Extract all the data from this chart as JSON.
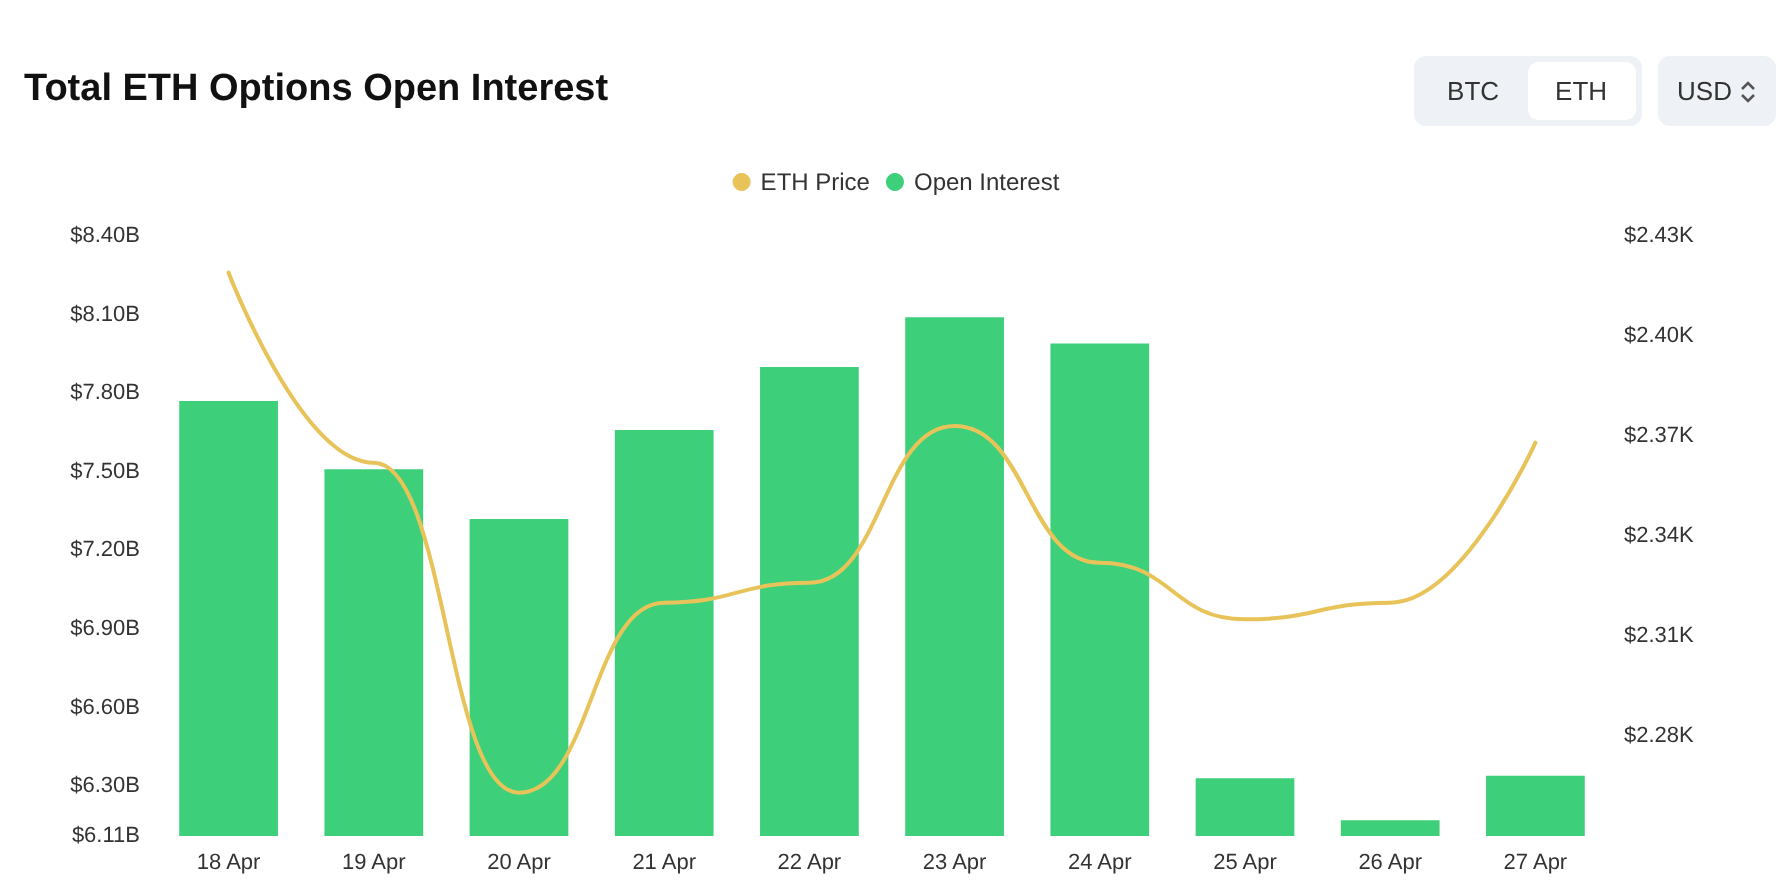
{
  "chart_data": {
    "type": "bar",
    "title": "Total ETH Options Open Interest",
    "annotations": [
      "BTC",
      "ETH",
      "USD"
    ],
    "categories": [
      "18 Apr",
      "19 Apr",
      "20 Apr",
      "21 Apr",
      "22 Apr",
      "23 Apr",
      "24 Apr",
      "25 Apr",
      "26 Apr",
      "27 Apr"
    ],
    "series": [
      {
        "name": "ETH Price",
        "type": "line",
        "axis": "y2",
        "color": "#e8c35a",
        "values": [
          2419,
          2362,
          2263,
          2320,
          2326,
          2373,
          2332,
          2315,
          2320,
          2368
        ]
      },
      {
        "name": "Open Interest",
        "color": "#3ecf7a",
        "values": [
          7.77,
          7.51,
          7.32,
          7.66,
          7.9,
          8.09,
          7.99,
          6.33,
          6.17,
          6.34
        ]
      }
    ],
    "ylim": [
      6.11,
      8.4
    ],
    "yticks": [
      {
        "value": 6.11,
        "label": "$6.11B"
      },
      {
        "value": 6.3,
        "label": "$6.30B"
      },
      {
        "value": 6.6,
        "label": "$6.60B"
      },
      {
        "value": 6.9,
        "label": "$6.90B"
      },
      {
        "value": 7.2,
        "label": "$7.20B"
      },
      {
        "value": 7.5,
        "label": "$7.50B"
      },
      {
        "value": 7.8,
        "label": "$7.80B"
      },
      {
        "value": 8.1,
        "label": "$8.10B"
      },
      {
        "value": 8.4,
        "label": "$8.40B"
      }
    ],
    "y2lim": [
      2250,
      2430
    ],
    "y2ticks": [
      {
        "value": 2280,
        "label": "$2.28K"
      },
      {
        "value": 2310,
        "label": "$2.31K"
      },
      {
        "value": 2340,
        "label": "$2.34K"
      },
      {
        "value": 2370,
        "label": "$2.37K"
      },
      {
        "value": 2400,
        "label": "$2.40K"
      },
      {
        "value": 2430,
        "label": "$2.43K"
      }
    ],
    "legend": "top",
    "marker": "none"
  }
}
